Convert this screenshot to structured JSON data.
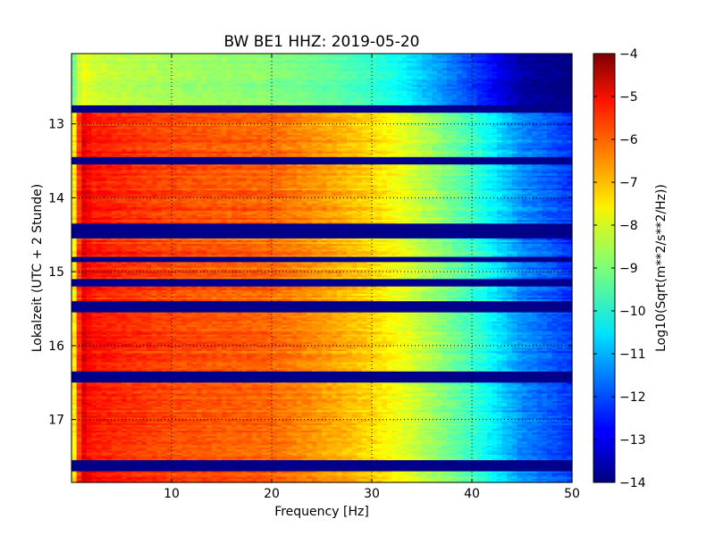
{
  "chart_data": {
    "type": "heatmap",
    "title": "BW BE1 HHZ: 2019-05-20",
    "xlabel": "Frequency [Hz]",
    "ylabel": "Lokalzeit (UTC + 2 Stunde)",
    "xlim": [
      0,
      50
    ],
    "ylim": [
      17.85,
      12.05
    ],
    "x_ticks": [
      10,
      20,
      30,
      40,
      50
    ],
    "y_ticks": [
      13,
      14,
      15,
      16,
      17
    ],
    "grid": true,
    "colormap": "jet",
    "colorbar": {
      "label": "Log10(Sqrt(m**2/s**2/Hz))",
      "range": [
        -14,
        -4
      ],
      "ticks": [
        -4,
        -5,
        -6,
        -7,
        -8,
        -9,
        -10,
        -11,
        -12,
        -13,
        -14
      ]
    },
    "bands": [
      {
        "t_start": 12.05,
        "t_end": 12.75,
        "state": "quiet"
      },
      {
        "t_start": 12.75,
        "t_end": 12.85,
        "state": "gap"
      },
      {
        "t_start": 12.85,
        "t_end": 13.45,
        "state": "active"
      },
      {
        "t_start": 13.45,
        "t_end": 13.55,
        "state": "gap"
      },
      {
        "t_start": 13.55,
        "t_end": 14.35,
        "state": "active"
      },
      {
        "t_start": 14.35,
        "t_end": 14.55,
        "state": "gap"
      },
      {
        "t_start": 14.55,
        "t_end": 14.8,
        "state": "active"
      },
      {
        "t_start": 14.8,
        "t_end": 14.87,
        "state": "gap"
      },
      {
        "t_start": 14.87,
        "t_end": 15.1,
        "state": "active"
      },
      {
        "t_start": 15.1,
        "t_end": 15.2,
        "state": "gap"
      },
      {
        "t_start": 15.2,
        "t_end": 15.4,
        "state": "active"
      },
      {
        "t_start": 15.4,
        "t_end": 15.55,
        "state": "gap"
      },
      {
        "t_start": 15.55,
        "t_end": 16.35,
        "state": "active"
      },
      {
        "t_start": 16.35,
        "t_end": 16.5,
        "state": "gap"
      },
      {
        "t_start": 16.5,
        "t_end": 17.55,
        "state": "active"
      },
      {
        "t_start": 17.55,
        "t_end": 17.7,
        "state": "gap"
      },
      {
        "t_start": 17.7,
        "t_end": 17.85,
        "state": "active"
      }
    ],
    "spectral_profile": {
      "frequency_hz": [
        0,
        1,
        2,
        5,
        10,
        20,
        25,
        30,
        33,
        36,
        40,
        43,
        45,
        50
      ],
      "active_log10": [
        -8.5,
        -4.8,
        -5.4,
        -5.6,
        -5.9,
        -6.2,
        -6.7,
        -7.3,
        -7.9,
        -8.6,
        -9.6,
        -10.6,
        -11.3,
        -12.2
      ],
      "quiet_log10": [
        -9.5,
        -7.8,
        -8.2,
        -8.4,
        -8.6,
        -8.9,
        -9.2,
        -9.7,
        -10.2,
        -11.0,
        -12.1,
        -13.0,
        -13.6,
        -14.0
      ],
      "gap_log10": -13.9
    },
    "colors": {
      "grid": "#000000",
      "background": "#ffffff"
    }
  }
}
